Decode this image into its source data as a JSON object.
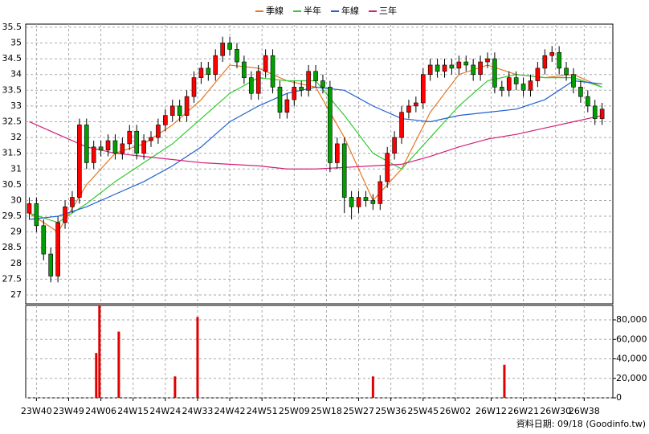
{
  "chart_data": [
    {
      "type": "candlestick",
      "up_color": "#ff0000",
      "down_color": "#00a000",
      "x": [
        0,
        2,
        4,
        6,
        8,
        10,
        12,
        14,
        16,
        18,
        20,
        22,
        24,
        26,
        28,
        30,
        32,
        34,
        36,
        38,
        40,
        42,
        44,
        46,
        48,
        50,
        52,
        54,
        56,
        58,
        60,
        62,
        64,
        66,
        68,
        70,
        72,
        74,
        76,
        78,
        80,
        82,
        84,
        86,
        88,
        90,
        92,
        94,
        96,
        98,
        100,
        102,
        104,
        106,
        108,
        110,
        112,
        114,
        116,
        118,
        120,
        122,
        124,
        126,
        128,
        130,
        132,
        134,
        136,
        138,
        140,
        142,
        144,
        146,
        148,
        150,
        152,
        154,
        156,
        158,
        160
      ],
      "open": [
        29.6,
        29.9,
        29.2,
        28.3,
        27.6,
        29.3,
        29.8,
        30.1,
        32.4,
        31.2,
        31.7,
        31.6,
        31.9,
        31.5,
        31.8,
        32.2,
        31.5,
        31.9,
        32.0,
        32.4,
        32.7,
        33.0,
        32.7,
        33.3,
        33.9,
        34.2,
        34.0,
        34.6,
        35.0,
        34.8,
        34.4,
        33.9,
        33.4,
        34.1,
        34.6,
        33.6,
        32.8,
        33.2,
        33.6,
        33.5,
        34.1,
        33.8,
        33.6,
        31.2,
        31.8,
        30.1,
        29.8,
        30.1,
        30.0,
        29.9,
        30.6,
        31.5,
        32.0,
        32.8,
        33.0,
        33.1,
        34.0,
        34.3,
        34.1,
        34.3,
        34.2,
        34.4,
        34.3,
        34.0,
        34.4,
        34.5,
        33.6,
        33.5,
        33.9,
        33.7,
        33.5,
        33.8,
        34.2,
        34.6,
        34.7,
        34.2,
        34.0,
        33.6,
        33.3,
        33.0,
        32.6
      ],
      "high": [
        30.1,
        30.1,
        29.4,
        28.5,
        29.5,
        30.0,
        30.3,
        32.6,
        32.6,
        31.9,
        31.9,
        32.1,
        32.1,
        32.0,
        32.4,
        32.4,
        32.1,
        32.2,
        32.6,
        32.9,
        33.2,
        33.2,
        33.5,
        34.1,
        34.4,
        34.4,
        34.8,
        35.2,
        35.2,
        35.0,
        34.6,
        34.1,
        34.3,
        34.8,
        34.8,
        33.8,
        33.4,
        33.8,
        33.8,
        34.3,
        34.3,
        34.0,
        33.8,
        32.0,
        32.0,
        30.3,
        30.3,
        30.3,
        30.2,
        30.8,
        31.7,
        32.2,
        33.0,
        33.2,
        33.3,
        34.2,
        34.5,
        34.5,
        34.5,
        34.5,
        34.6,
        34.6,
        34.5,
        34.6,
        34.7,
        34.7,
        33.8,
        34.1,
        34.1,
        33.9,
        34.0,
        34.4,
        34.8,
        34.9,
        34.9,
        34.4,
        34.2,
        33.8,
        33.5,
        33.2,
        33.1
      ],
      "low": [
        29.4,
        29.0,
        28.1,
        27.4,
        27.4,
        29.1,
        29.6,
        29.9,
        31.0,
        31.0,
        31.4,
        31.4,
        31.3,
        31.3,
        31.6,
        31.3,
        31.3,
        31.7,
        31.8,
        32.2,
        32.5,
        32.5,
        32.5,
        33.1,
        33.7,
        33.8,
        33.8,
        34.4,
        34.6,
        34.2,
        33.7,
        33.2,
        33.2,
        33.9,
        33.4,
        32.6,
        32.6,
        33.0,
        33.3,
        33.3,
        33.6,
        33.4,
        30.9,
        31.0,
        29.6,
        29.4,
        29.6,
        29.8,
        29.7,
        29.7,
        30.4,
        31.3,
        31.8,
        32.6,
        32.8,
        32.9,
        33.8,
        33.9,
        33.9,
        34.0,
        34.0,
        34.1,
        33.8,
        33.8,
        34.2,
        33.4,
        33.3,
        33.3,
        33.5,
        33.3,
        33.3,
        33.6,
        34.0,
        34.4,
        34.0,
        33.8,
        33.4,
        33.1,
        32.8,
        32.4,
        32.4
      ],
      "close": [
        29.9,
        29.2,
        28.3,
        27.6,
        29.3,
        29.8,
        30.1,
        32.4,
        31.2,
        31.7,
        31.6,
        31.9,
        31.5,
        31.8,
        32.2,
        31.5,
        31.9,
        32.0,
        32.4,
        32.7,
        33.0,
        32.7,
        33.3,
        33.9,
        34.2,
        34.0,
        34.6,
        35.0,
        34.8,
        34.4,
        33.9,
        33.4,
        34.1,
        34.6,
        33.6,
        32.8,
        33.2,
        33.6,
        33.5,
        34.1,
        33.8,
        33.6,
        31.2,
        31.8,
        30.1,
        29.8,
        30.1,
        30.0,
        29.9,
        30.6,
        31.5,
        32.0,
        32.8,
        33.0,
        33.1,
        34.0,
        34.3,
        34.1,
        34.3,
        34.2,
        34.4,
        34.3,
        34.0,
        34.4,
        34.5,
        33.6,
        33.5,
        33.9,
        33.7,
        33.5,
        33.8,
        34.2,
        34.6,
        34.7,
        34.2,
        34.0,
        33.6,
        33.3,
        33.0,
        32.6,
        32.9
      ],
      "series": [
        {
          "name": "季線",
          "color": "#e87722",
          "x": [
            0,
            8,
            16,
            24,
            32,
            40,
            48,
            56,
            64,
            72,
            80,
            88,
            96,
            104,
            112,
            120,
            128,
            136,
            144,
            152,
            160
          ],
          "values": [
            29.6,
            29.0,
            30.5,
            31.5,
            31.8,
            32.4,
            33.2,
            34.3,
            34.2,
            33.8,
            33.6,
            32.0,
            30.0,
            31.0,
            32.8,
            34.0,
            34.3,
            34.0,
            33.9,
            34.0,
            33.6
          ]
        },
        {
          "name": "半年",
          "color": "#2ecc2e",
          "x": [
            0,
            8,
            16,
            24,
            32,
            40,
            48,
            56,
            64,
            72,
            80,
            88,
            96,
            104,
            112,
            120,
            128,
            136,
            144,
            152,
            160
          ],
          "values": [
            29.6,
            29.3,
            29.9,
            30.6,
            31.2,
            31.8,
            32.6,
            33.4,
            33.9,
            33.8,
            33.8,
            32.7,
            31.5,
            31.0,
            32.0,
            33.0,
            33.8,
            34.0,
            33.9,
            33.9,
            33.6
          ]
        },
        {
          "name": "年線",
          "color": "#2060d0",
          "x": [
            0,
            8,
            16,
            24,
            32,
            40,
            48,
            56,
            64,
            72,
            80,
            88,
            96,
            104,
            112,
            120,
            128,
            136,
            144,
            152,
            160
          ],
          "values": [
            29.4,
            29.5,
            29.8,
            30.2,
            30.6,
            31.1,
            31.7,
            32.5,
            33.0,
            33.4,
            33.6,
            33.5,
            33.0,
            32.6,
            32.5,
            32.7,
            32.8,
            32.9,
            33.2,
            33.8,
            33.7
          ]
        },
        {
          "name": "三年",
          "color": "#d0207a",
          "x": [
            0,
            8,
            16,
            24,
            32,
            40,
            48,
            56,
            64,
            72,
            80,
            88,
            96,
            104,
            112,
            120,
            128,
            136,
            144,
            152,
            160
          ],
          "values": [
            32.5,
            32.1,
            31.7,
            31.5,
            31.4,
            31.3,
            31.2,
            31.15,
            31.1,
            31.0,
            31.0,
            31.05,
            31.1,
            31.15,
            31.4,
            31.7,
            31.95,
            32.1,
            32.3,
            32.5,
            32.7
          ]
        }
      ],
      "xlim": [
        -1,
        163
      ],
      "ylim": [
        26.72,
        35.6
      ],
      "yticks": [
        27,
        27.5,
        28,
        28.5,
        29,
        29.5,
        30,
        30.5,
        31,
        31.5,
        32,
        32.5,
        33,
        33.5,
        34,
        34.5,
        35,
        35.5
      ],
      "grid": true
    },
    {
      "type": "bar",
      "color": "#e00000",
      "x": [
        18.7,
        19.6,
        25,
        40.7,
        47,
        96,
        132.7
      ],
      "values": [
        46000,
        95000,
        68000,
        22000,
        83000,
        22000,
        34000
      ],
      "xlim": [
        -1,
        163
      ],
      "ylim": [
        0,
        94850
      ],
      "yticks": [
        0,
        {
          "value": 20000,
          "label": "20,000"
        },
        {
          "value": 40000,
          "label": "40,000"
        },
        {
          "value": 60000,
          "label": "60,000"
        },
        {
          "value": 80000,
          "label": "80,000"
        }
      ],
      "xticks": [
        {
          "value": 2,
          "label": "23W40"
        },
        {
          "value": 11,
          "label": "23W49"
        },
        {
          "value": 20,
          "label": "24W06"
        },
        {
          "value": 29,
          "label": "24W15"
        },
        {
          "value": 38,
          "label": "24W24"
        },
        {
          "value": 47,
          "label": "24W33"
        },
        {
          "value": 56,
          "label": "24W42"
        },
        {
          "value": 65,
          "label": "24W51"
        },
        {
          "value": 74,
          "label": "25W09"
        },
        {
          "value": 83,
          "label": "25W18"
        },
        {
          "value": 92,
          "label": "25W27"
        },
        {
          "value": 101,
          "label": "25W36"
        },
        {
          "value": 110,
          "label": "25W45"
        },
        {
          "value": 119,
          "label": "26W02"
        },
        {
          "value": 129,
          "label": "26W12"
        },
        {
          "value": 138,
          "label": "26W21"
        },
        {
          "value": 147,
          "label": "26W30"
        },
        {
          "value": 155,
          "label": "26W38"
        }
      ],
      "grid": true,
      "footer": "資料日期: 09/18  (Goodinfo.tw)"
    }
  ]
}
